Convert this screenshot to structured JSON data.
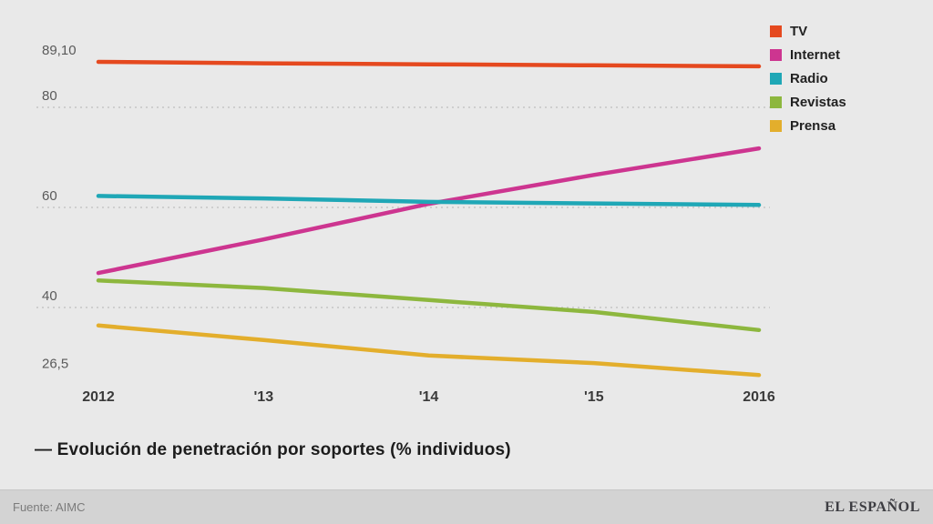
{
  "chart_data": {
    "type": "line",
    "title": "— Evolución de penetración por soportes (% individuos)",
    "x": [
      2012,
      2013,
      2014,
      2015,
      2016
    ],
    "x_tick_labels": [
      "2012",
      "'13",
      "'14",
      "'15",
      "2016"
    ],
    "series": [
      {
        "name": "TV",
        "color": "#e5491f",
        "values": [
          89.1,
          88.8,
          88.6,
          88.4,
          88.2
        ]
      },
      {
        "name": "Internet",
        "color": "#cd3590",
        "values": [
          46.9,
          53.6,
          60.7,
          66.5,
          71.8
        ]
      },
      {
        "name": "Radio",
        "color": "#1fa7b6",
        "values": [
          62.3,
          61.8,
          61.1,
          60.8,
          60.5
        ]
      },
      {
        "name": "Revistas",
        "color": "#8db73e",
        "values": [
          45.4,
          43.9,
          41.5,
          39.1,
          35.5
        ]
      },
      {
        "name": "Prensa",
        "color": "#e3ae2c",
        "values": [
          36.4,
          33.5,
          30.4,
          28.9,
          26.5
        ]
      }
    ],
    "y_ticks": [
      {
        "label": "89,10",
        "value": 89.1,
        "gridline": false
      },
      {
        "label": "80",
        "value": 80,
        "gridline": true
      },
      {
        "label": "60",
        "value": 60,
        "gridline": true
      },
      {
        "label": "40",
        "value": 40,
        "gridline": true
      },
      {
        "label": "26,5",
        "value": 26.5,
        "gridline": false
      }
    ],
    "ylim": [
      24,
      93
    ],
    "grid": "dotted-horizontal",
    "legend_position": "top-right",
    "background_color": "#e9e9e9"
  },
  "footer": {
    "source": "Fuente: AIMC",
    "brand": "EL ESPAÑOL"
  }
}
